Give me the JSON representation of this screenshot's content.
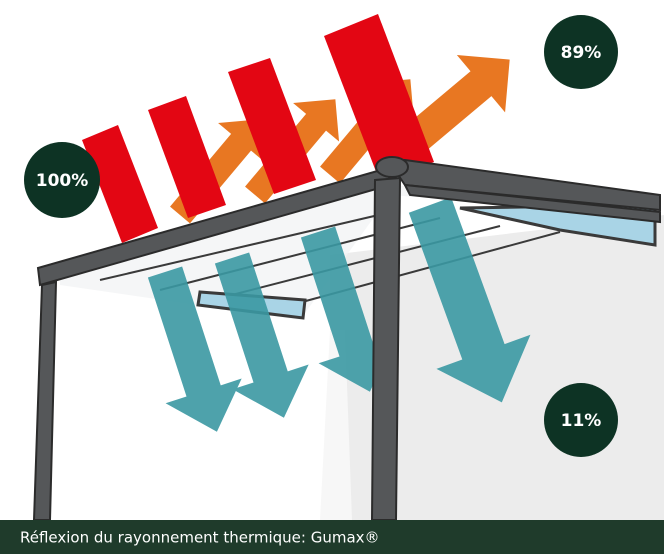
{
  "labels": {
    "incoming": "100%",
    "reflected": "89%",
    "transmitted": "11%"
  },
  "caption": "Réflexion du rayonnement thermique: Gumax®"
}
